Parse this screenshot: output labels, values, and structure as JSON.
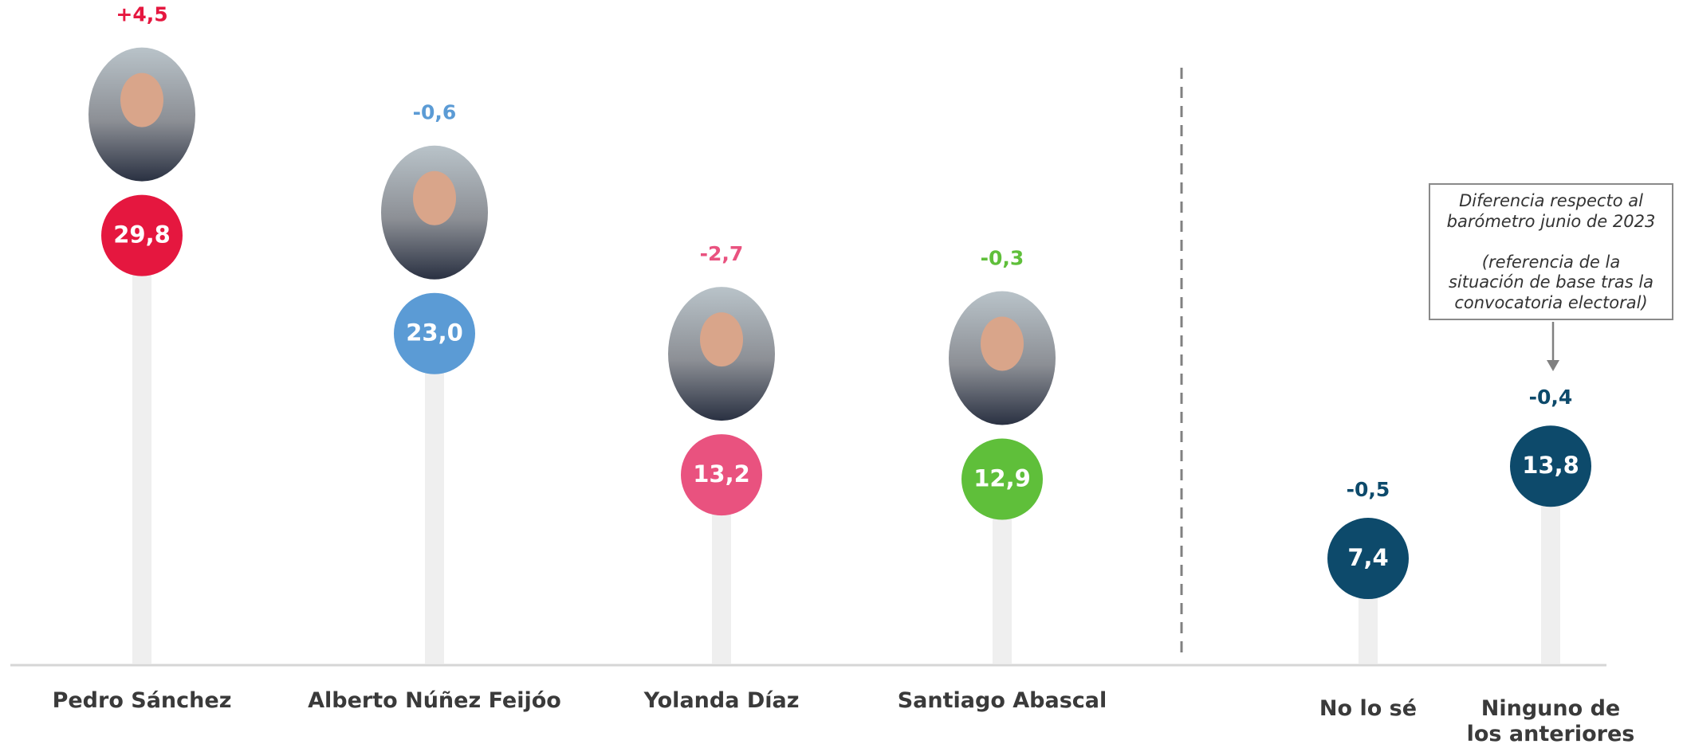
{
  "chart_data": {
    "type": "lollipop",
    "categories": [
      "Pedro Sánchez",
      "Alberto Núñez Feijóo",
      "Yolanda Díaz",
      "Santiago Abascal",
      "No lo sé",
      "Ninguno de\nlos anteriores"
    ],
    "values": [
      29.8,
      23.0,
      13.2,
      12.9,
      7.4,
      13.8
    ],
    "value_labels": [
      "29,8",
      "23,0",
      "13,2",
      "12,9",
      "7,4",
      "13,8"
    ],
    "changes": [
      4.5,
      -0.6,
      -2.7,
      -0.3,
      -0.5,
      -0.4
    ],
    "change_labels": [
      "+4,5",
      "-0,6",
      "-2,7",
      "-0,3",
      "-0,5",
      "-0,4"
    ],
    "colors": [
      "#e5173f",
      "#5b9bd5",
      "#e9527f",
      "#5fbf3a",
      "#0d4a6b",
      "#0d4a6b"
    ],
    "annotation": "Diferencia respecto al\nbarómetro junio de 2023\n\n(referencia de la\nsituación de base tras la\nconvocatoria electoral)"
  }
}
